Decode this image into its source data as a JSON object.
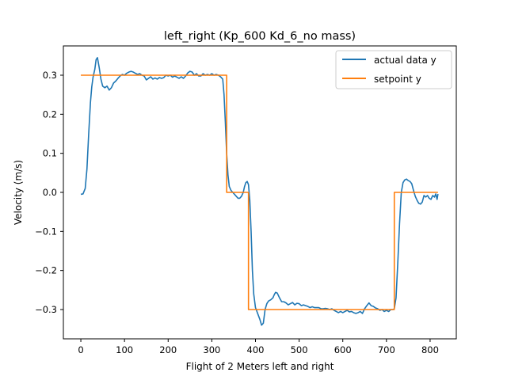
{
  "chart_data": {
    "type": "line",
    "title": "left_right (Kp_600 Kd_6_no mass)",
    "xlabel": "Flight of 2 Meters left and right",
    "ylabel": "Velocity (m/s)",
    "xlim": [
      -40,
      860
    ],
    "ylim": [
      -0.375,
      0.375
    ],
    "xticks": [
      0,
      100,
      200,
      300,
      400,
      500,
      600,
      700,
      800
    ],
    "yticks": [
      -0.3,
      -0.2,
      -0.1,
      0.0,
      0.1,
      0.2,
      0.3
    ],
    "xtick_labels": [
      "0",
      "100",
      "200",
      "300",
      "400",
      "500",
      "600",
      "700",
      "800"
    ],
    "ytick_labels": [
      "−0.3",
      "−0.2",
      "−0.1",
      "0.0",
      "0.1",
      "0.2",
      "0.3"
    ],
    "grid": false,
    "legend_position": "top-right",
    "series": [
      {
        "name": "actual data y",
        "color": "#1f77b4",
        "points": [
          [
            0,
            -0.005
          ],
          [
            5,
            -0.004
          ],
          [
            10,
            0.01
          ],
          [
            14,
            0.06
          ],
          [
            18,
            0.15
          ],
          [
            22,
            0.23
          ],
          [
            25,
            0.27
          ],
          [
            28,
            0.295
          ],
          [
            32,
            0.315
          ],
          [
            35,
            0.34
          ],
          [
            38,
            0.345
          ],
          [
            42,
            0.32
          ],
          [
            46,
            0.29
          ],
          [
            50,
            0.272
          ],
          [
            55,
            0.268
          ],
          [
            60,
            0.272
          ],
          [
            65,
            0.262
          ],
          [
            70,
            0.268
          ],
          [
            75,
            0.28
          ],
          [
            80,
            0.285
          ],
          [
            85,
            0.292
          ],
          [
            90,
            0.298
          ],
          [
            95,
            0.302
          ],
          [
            100,
            0.3
          ],
          [
            105,
            0.305
          ],
          [
            110,
            0.308
          ],
          [
            115,
            0.31
          ],
          [
            120,
            0.308
          ],
          [
            125,
            0.305
          ],
          [
            130,
            0.302
          ],
          [
            135,
            0.304
          ],
          [
            140,
            0.3
          ],
          [
            145,
            0.298
          ],
          [
            150,
            0.288
          ],
          [
            155,
            0.292
          ],
          [
            160,
            0.296
          ],
          [
            165,
            0.29
          ],
          [
            170,
            0.293
          ],
          [
            175,
            0.29
          ],
          [
            180,
            0.294
          ],
          [
            185,
            0.292
          ],
          [
            190,
            0.294
          ],
          [
            195,
            0.3
          ],
          [
            200,
            0.298
          ],
          [
            205,
            0.3
          ],
          [
            210,
            0.295
          ],
          [
            215,
            0.298
          ],
          [
            220,
            0.295
          ],
          [
            225,
            0.292
          ],
          [
            230,
            0.296
          ],
          [
            235,
            0.292
          ],
          [
            240,
            0.298
          ],
          [
            245,
            0.306
          ],
          [
            250,
            0.31
          ],
          [
            255,
            0.308
          ],
          [
            260,
            0.3
          ],
          [
            265,
            0.304
          ],
          [
            270,
            0.298
          ],
          [
            275,
            0.298
          ],
          [
            280,
            0.304
          ],
          [
            285,
            0.3
          ],
          [
            290,
            0.302
          ],
          [
            295,
            0.3
          ],
          [
            300,
            0.304
          ],
          [
            305,
            0.3
          ],
          [
            310,
            0.302
          ],
          [
            315,
            0.3
          ],
          [
            320,
            0.296
          ],
          [
            325,
            0.29
          ],
          [
            328,
            0.25
          ],
          [
            331,
            0.18
          ],
          [
            334,
            0.1
          ],
          [
            337,
            0.045
          ],
          [
            340,
            0.015
          ],
          [
            344,
            0.005
          ],
          [
            348,
            0.0
          ],
          [
            352,
            -0.005
          ],
          [
            356,
            -0.01
          ],
          [
            360,
            -0.015
          ],
          [
            364,
            -0.015
          ],
          [
            368,
            -0.01
          ],
          [
            372,
            0.0
          ],
          [
            375,
            0.015
          ],
          [
            378,
            0.025
          ],
          [
            381,
            0.028
          ],
          [
            384,
            0.02
          ],
          [
            387,
            -0.02
          ],
          [
            390,
            -0.1
          ],
          [
            393,
            -0.2
          ],
          [
            396,
            -0.26
          ],
          [
            400,
            -0.295
          ],
          [
            405,
            -0.31
          ],
          [
            410,
            -0.325
          ],
          [
            414,
            -0.34
          ],
          [
            418,
            -0.335
          ],
          [
            422,
            -0.3
          ],
          [
            426,
            -0.285
          ],
          [
            430,
            -0.278
          ],
          [
            435,
            -0.275
          ],
          [
            440,
            -0.27
          ],
          [
            443,
            -0.262
          ],
          [
            446,
            -0.256
          ],
          [
            450,
            -0.258
          ],
          [
            455,
            -0.27
          ],
          [
            460,
            -0.28
          ],
          [
            465,
            -0.28
          ],
          [
            470,
            -0.283
          ],
          [
            475,
            -0.288
          ],
          [
            480,
            -0.285
          ],
          [
            485,
            -0.282
          ],
          [
            490,
            -0.288
          ],
          [
            495,
            -0.284
          ],
          [
            500,
            -0.285
          ],
          [
            505,
            -0.29
          ],
          [
            510,
            -0.288
          ],
          [
            515,
            -0.29
          ],
          [
            520,
            -0.292
          ],
          [
            525,
            -0.295
          ],
          [
            530,
            -0.293
          ],
          [
            535,
            -0.295
          ],
          [
            540,
            -0.295
          ],
          [
            545,
            -0.295
          ],
          [
            550,
            -0.298
          ],
          [
            555,
            -0.298
          ],
          [
            560,
            -0.297
          ],
          [
            565,
            -0.298
          ],
          [
            570,
            -0.3
          ],
          [
            575,
            -0.298
          ],
          [
            580,
            -0.302
          ],
          [
            585,
            -0.305
          ],
          [
            590,
            -0.308
          ],
          [
            595,
            -0.305
          ],
          [
            600,
            -0.308
          ],
          [
            605,
            -0.305
          ],
          [
            610,
            -0.302
          ],
          [
            615,
            -0.306
          ],
          [
            620,
            -0.305
          ],
          [
            625,
            -0.308
          ],
          [
            630,
            -0.31
          ],
          [
            635,
            -0.308
          ],
          [
            640,
            -0.305
          ],
          [
            645,
            -0.31
          ],
          [
            650,
            -0.298
          ],
          [
            655,
            -0.29
          ],
          [
            660,
            -0.283
          ],
          [
            665,
            -0.29
          ],
          [
            670,
            -0.292
          ],
          [
            675,
            -0.296
          ],
          [
            680,
            -0.298
          ],
          [
            685,
            -0.302
          ],
          [
            690,
            -0.3
          ],
          [
            695,
            -0.305
          ],
          [
            700,
            -0.302
          ],
          [
            705,
            -0.305
          ],
          [
            710,
            -0.3
          ],
          [
            715,
            -0.3
          ],
          [
            718,
            -0.298
          ],
          [
            722,
            -0.27
          ],
          [
            726,
            -0.18
          ],
          [
            730,
            -0.08
          ],
          [
            734,
            0.0
          ],
          [
            738,
            0.025
          ],
          [
            742,
            0.032
          ],
          [
            746,
            0.034
          ],
          [
            750,
            0.03
          ],
          [
            754,
            0.028
          ],
          [
            758,
            0.022
          ],
          [
            762,
            0.005
          ],
          [
            766,
            -0.01
          ],
          [
            770,
            -0.02
          ],
          [
            774,
            -0.028
          ],
          [
            778,
            -0.03
          ],
          [
            782,
            -0.025
          ],
          [
            786,
            -0.008
          ],
          [
            790,
            -0.012
          ],
          [
            794,
            -0.008
          ],
          [
            798,
            -0.015
          ],
          [
            802,
            -0.018
          ],
          [
            806,
            -0.008
          ],
          [
            810,
            -0.012
          ],
          [
            813,
            -0.004
          ],
          [
            816,
            -0.018
          ],
          [
            818,
            -0.004
          ]
        ]
      },
      {
        "name": "setpoint y",
        "color": "#ff7f0e",
        "points": [
          [
            0,
            0.3
          ],
          [
            334,
            0.3
          ],
          [
            334,
            0.0
          ],
          [
            384,
            0.0
          ],
          [
            384,
            -0.3
          ],
          [
            718,
            -0.3
          ],
          [
            718,
            0.0
          ],
          [
            818,
            0.0
          ]
        ]
      }
    ]
  }
}
